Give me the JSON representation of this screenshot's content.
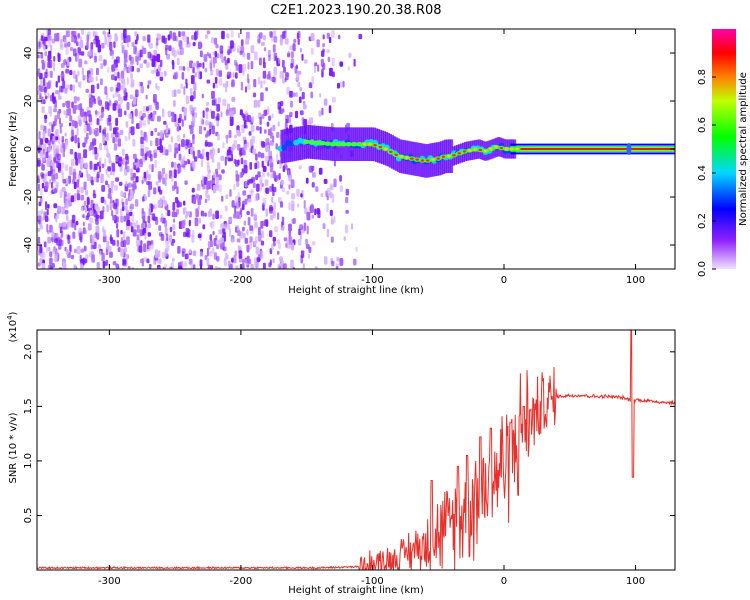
{
  "title": "C2E1.2023.190.20.38.R08",
  "chart_data": [
    {
      "type": "heatmap",
      "xlabel": "Height of straight line (km)",
      "ylabel": "Frequency (Hz)",
      "xlim": [
        -355,
        130
      ],
      "ylim": [
        -50,
        50
      ],
      "xticks": [
        -300,
        -200,
        -100,
        0,
        100
      ],
      "yticks": [
        -40,
        -20,
        0,
        20,
        40
      ],
      "colorbar": {
        "label": "Normalized spectral amplitude",
        "range": [
          0,
          1
        ],
        "ticks": [
          0.0,
          0.2,
          0.4,
          0.6,
          0.8
        ],
        "colors": [
          "#f0e0ff",
          "#7a00ff",
          "#0000ff",
          "#00e0ff",
          "#00ff00",
          "#ffff00",
          "#ff8000",
          "#ff0000",
          "#ff00aa"
        ]
      },
      "noise_region": {
        "x": [
          -355,
          -110
        ],
        "y": [
          -50,
          50
        ]
      },
      "signal_track": {
        "x": [
          -170,
          -150,
          -130,
          -110,
          -100,
          -90,
          -80,
          -70,
          -60,
          -50,
          -45,
          -40,
          -35,
          -30,
          -20,
          -15,
          -10,
          -5,
          0,
          20,
          50,
          95,
          130
        ],
        "y": [
          1,
          3,
          2,
          2,
          2,
          0,
          -3,
          -4,
          -5,
          -4,
          -3,
          -3,
          -2,
          -1,
          0,
          -1,
          0,
          1,
          0,
          0,
          0,
          0,
          0
        ]
      }
    },
    {
      "type": "line",
      "xlabel": "Height of straight line (km)",
      "ylabel": "SNR (10 * v/v)",
      "scale_label": "(x10",
      "scale_exponent": "4",
      "scale_close": ")",
      "xlim": [
        -355,
        130
      ],
      "ylim": [
        0,
        2.2
      ],
      "xticks": [
        -300,
        -200,
        -100,
        0,
        100
      ],
      "yticks": [
        0.5,
        1.0,
        1.5,
        2.0
      ],
      "series": [
        {
          "color": "#e8302a",
          "envelope_x": [
            -355,
            -200,
            -140,
            -110,
            -100,
            -90,
            -80,
            -70,
            -60,
            -50,
            -40,
            -30,
            -20,
            -10,
            0,
            10,
            20,
            30,
            40,
            50,
            60,
            70,
            80,
            90,
            95,
            100,
            110,
            120,
            130
          ],
          "envelope_y": [
            0.02,
            0.02,
            0.02,
            0.03,
            0.05,
            0.08,
            0.12,
            0.18,
            0.24,
            0.32,
            0.42,
            0.55,
            0.7,
            0.82,
            0.98,
            1.18,
            1.38,
            1.52,
            1.59,
            1.6,
            1.6,
            1.59,
            1.59,
            1.58,
            1.56,
            1.56,
            1.55,
            1.54,
            1.53
          ],
          "spikes": [
            {
              "x": -55,
              "y": 0.82
            },
            {
              "x": -35,
              "y": 0.95
            },
            {
              "x": -28,
              "y": 1.05
            },
            {
              "x": -18,
              "y": 1.22
            },
            {
              "x": -10,
              "y": 1.3
            },
            {
              "x": 5,
              "y": 1.35
            },
            {
              "x": 15,
              "y": 1.5
            },
            {
              "x": 97,
              "y": 2.2
            },
            {
              "x": 98,
              "y": 0.85
            }
          ]
        }
      ]
    }
  ]
}
